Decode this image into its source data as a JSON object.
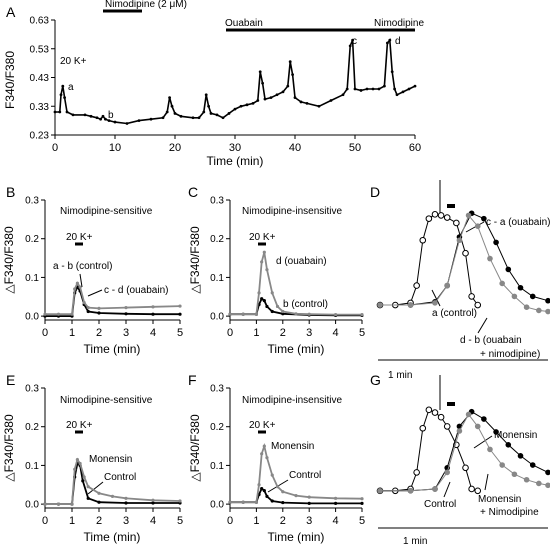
{
  "panels": {
    "A": {
      "letter": "A",
      "ylabel": "F340/F380",
      "xlabel": "Time (min)",
      "yticks": [
        "0.63",
        "0.53",
        "0.43",
        "0.33",
        "0.23"
      ],
      "xticks": [
        "0",
        "10",
        "20",
        "30",
        "40",
        "50",
        "60"
      ],
      "bars": [
        {
          "label": "Nimodipine (2 μM)",
          "from": 8,
          "to": 14.5
        },
        {
          "label": "Ouabain",
          "from": 28.5,
          "to": 60
        },
        {
          "label": "Nimodipine",
          "from": 53.5,
          "to": 60
        }
      ],
      "k_label": "20 K+",
      "point_labels": [
        "a",
        "b",
        "c",
        "d"
      ]
    },
    "B": {
      "letter": "B",
      "title": "Nimodipine-sensitive",
      "ylabel": "△F340/F380",
      "xlabel": "Time (min)",
      "yticks": [
        "0.3",
        "0.2",
        "0.1",
        "0.0"
      ],
      "xticks": [
        "0",
        "1",
        "2",
        "3",
        "4",
        "5"
      ],
      "k_label": "20 K+",
      "annotations": [
        "a - b (control)",
        "c - d (ouabain)"
      ]
    },
    "C": {
      "letter": "C",
      "title": "Nimodipine-insensitive",
      "ylabel": "△F340/F380",
      "xlabel": "Time (min)",
      "yticks": [
        "0.3",
        "0.2",
        "0.1",
        "0.0"
      ],
      "xticks": [
        "0",
        "1",
        "2",
        "3",
        "4",
        "5"
      ],
      "k_label": "20 K+",
      "annotations": [
        "d (ouabain)",
        "b (control)"
      ]
    },
    "D": {
      "letter": "D",
      "annotations": [
        "c - a (ouabain)",
        "a (control)",
        "d - b (ouabain",
        "+ nimodipine)"
      ],
      "scale_label": "1 min"
    },
    "E": {
      "letter": "E",
      "title": "Nimodipine-sensitive",
      "ylabel": "△F340/F380",
      "xlabel": "Time (min)",
      "yticks": [
        "0.3",
        "0.2",
        "0.1",
        "0.0"
      ],
      "xticks": [
        "0",
        "1",
        "2",
        "3",
        "4",
        "5"
      ],
      "k_label": "20 K+",
      "annotations": [
        "Monensin",
        "Control"
      ]
    },
    "F": {
      "letter": "F",
      "title": "Nimodipine-insensitive",
      "ylabel": "△F340/F380",
      "xlabel": "Time (min)",
      "yticks": [
        "0.3",
        "0.2",
        "0.1",
        "0.0"
      ],
      "xticks": [
        "0",
        "1",
        "2",
        "3",
        "4",
        "5"
      ],
      "k_label": "20 K+",
      "annotations": [
        "Monensin",
        "Control"
      ]
    },
    "G": {
      "letter": "G",
      "annotations": [
        "Monensin",
        "Control",
        "Monensin",
        "+ Nimodipine"
      ],
      "scale_label": "1 min"
    }
  },
  "chart_data": [
    {
      "panel": "A",
      "type": "line",
      "xlabel": "Time (min)",
      "ylabel": "F340/F380",
      "xlim": [
        0,
        60
      ],
      "ylim": [
        0.23,
        0.63
      ],
      "series": [
        {
          "color": "#000000",
          "x": [
            0,
            0.8,
            1,
            1.3,
            1.6,
            2,
            3,
            5,
            6,
            7,
            7.6,
            8,
            8.4,
            9,
            10,
            12,
            14,
            16,
            18,
            18.7,
            19.1,
            19.5,
            20,
            21,
            23,
            24,
            24.8,
            25.2,
            25.6,
            26,
            27,
            28,
            29,
            30,
            31,
            32,
            33,
            33.8,
            34.2,
            34.6,
            35,
            36,
            37,
            38,
            38.8,
            39.2,
            39.6,
            40,
            41,
            42,
            44,
            46,
            48,
            48.7,
            49.2,
            49.6,
            50,
            51,
            52,
            53,
            54,
            54.9,
            55.4,
            55.8,
            56.2,
            56.6,
            57,
            58,
            59,
            60
          ],
          "y": [
            0.31,
            0.31,
            0.37,
            0.4,
            0.36,
            0.31,
            0.3,
            0.3,
            0.295,
            0.29,
            0.285,
            0.295,
            0.285,
            0.28,
            0.275,
            0.27,
            0.28,
            0.285,
            0.29,
            0.31,
            0.36,
            0.33,
            0.305,
            0.295,
            0.29,
            0.29,
            0.31,
            0.37,
            0.33,
            0.305,
            0.3,
            0.29,
            0.305,
            0.32,
            0.33,
            0.335,
            0.34,
            0.35,
            0.45,
            0.41,
            0.355,
            0.36,
            0.37,
            0.38,
            0.4,
            0.485,
            0.44,
            0.36,
            0.345,
            0.34,
            0.33,
            0.35,
            0.37,
            0.39,
            0.54,
            0.56,
            0.39,
            0.385,
            0.39,
            0.39,
            0.39,
            0.4,
            0.55,
            0.56,
            0.45,
            0.39,
            0.37,
            0.38,
            0.39,
            0.4
          ]
        }
      ]
    },
    {
      "panel": "B",
      "type": "line",
      "xlabel": "Time (min)",
      "ylabel": "△F340/F380",
      "xlim": [
        0,
        5
      ],
      "ylim": [
        -0.01,
        0.3
      ],
      "series": [
        {
          "color": "#000000",
          "x": [
            0,
            0.5,
            1,
            1.1,
            1.2,
            1.3,
            1.45,
            1.6,
            2,
            3,
            4,
            5
          ],
          "y": [
            0.0,
            0.0,
            0.0,
            0.06,
            0.075,
            0.065,
            0.03,
            0.012,
            0.008,
            0.006,
            0.005,
            0.005
          ]
        },
        {
          "color": "#888888",
          "x": [
            0,
            0.5,
            1,
            1.1,
            1.2,
            1.3,
            1.45,
            1.6,
            2,
            3,
            4,
            5
          ],
          "y": [
            0.005,
            0.005,
            0.005,
            0.07,
            0.085,
            0.075,
            0.035,
            0.022,
            0.02,
            0.022,
            0.024,
            0.026
          ]
        }
      ]
    },
    {
      "panel": "C",
      "type": "line",
      "xlabel": "Time (min)",
      "ylabel": "△F340/F380",
      "xlim": [
        0,
        5
      ],
      "ylim": [
        -0.01,
        0.3
      ],
      "series": [
        {
          "color": "#000000",
          "x": [
            0,
            0.5,
            1,
            1.1,
            1.2,
            1.3,
            1.4,
            1.6,
            2,
            3,
            4,
            5
          ],
          "y": [
            0.005,
            0.005,
            0.005,
            0.03,
            0.045,
            0.04,
            0.025,
            0.012,
            0.006,
            0.003,
            0.002,
            0.002
          ]
        },
        {
          "color": "#888888",
          "x": [
            0,
            0.5,
            1,
            1.1,
            1.2,
            1.3,
            1.4,
            1.6,
            1.8,
            2,
            2.5,
            3,
            4,
            5
          ],
          "y": [
            0.005,
            0.005,
            0.005,
            0.06,
            0.14,
            0.165,
            0.12,
            0.06,
            0.025,
            0.012,
            0.006,
            0.005,
            0.004,
            0.004
          ]
        }
      ]
    },
    {
      "panel": "E",
      "type": "line",
      "xlabel": "Time (min)",
      "ylabel": "△F340/F380",
      "xlim": [
        0,
        5
      ],
      "ylim": [
        -0.01,
        0.3
      ],
      "series": [
        {
          "color": "#000000",
          "x": [
            0,
            0.5,
            1,
            1.1,
            1.2,
            1.3,
            1.4,
            1.6,
            2,
            3,
            4,
            5
          ],
          "y": [
            0.0,
            0.0,
            0.0,
            0.07,
            0.105,
            0.1,
            0.06,
            0.015,
            0.005,
            0.003,
            0.003,
            0.003
          ]
        },
        {
          "color": "#888888",
          "x": [
            0,
            0.5,
            1,
            1.1,
            1.2,
            1.3,
            1.45,
            1.6,
            2,
            2.5,
            3,
            4,
            5
          ],
          "y": [
            0.0,
            0.0,
            0.0,
            0.09,
            0.115,
            0.105,
            0.07,
            0.045,
            0.028,
            0.02,
            0.015,
            0.01,
            0.008
          ]
        }
      ]
    },
    {
      "panel": "F",
      "type": "line",
      "xlabel": "Time (min)",
      "ylabel": "△F340/F380",
      "xlim": [
        0,
        5
      ],
      "ylim": [
        -0.01,
        0.3
      ],
      "series": [
        {
          "color": "#000000",
          "x": [
            0,
            0.5,
            1,
            1.1,
            1.2,
            1.3,
            1.4,
            1.6,
            2,
            3,
            4,
            5
          ],
          "y": [
            0.005,
            0.005,
            0.005,
            0.025,
            0.04,
            0.035,
            0.02,
            0.008,
            0.004,
            0.002,
            0.002,
            0.002
          ]
        },
        {
          "color": "#888888",
          "x": [
            0,
            0.5,
            1,
            1.1,
            1.2,
            1.3,
            1.4,
            1.6,
            1.8,
            2,
            2.5,
            3,
            4,
            5
          ],
          "y": [
            0.005,
            0.005,
            0.005,
            0.05,
            0.13,
            0.15,
            0.12,
            0.075,
            0.045,
            0.032,
            0.022,
            0.018,
            0.015,
            0.014
          ]
        }
      ]
    },
    {
      "panel": "D",
      "type": "scatter",
      "xlim": [
        0,
        5.5
      ],
      "ylim": [
        0,
        1
      ],
      "series": [
        {
          "marker": "open",
          "color": "#000000",
          "x": [
            0,
            0.5,
            1.0,
            1.2,
            1.4,
            1.6,
            1.8,
            2.0,
            2.2,
            2.5,
            2.8,
            3.0,
            3.2
          ],
          "y": [
            0.12,
            0.12,
            0.14,
            0.3,
            0.72,
            0.92,
            0.96,
            0.95,
            0.93,
            0.88,
            0.6,
            0.2,
            0.12
          ]
        },
        {
          "marker": "filled",
          "color": "#000000",
          "x": [
            0,
            1.0,
            1.8,
            2.2,
            2.6,
            3.0,
            3.4,
            3.8,
            4.2,
            4.6,
            5.0,
            5.5
          ],
          "y": [
            0.12,
            0.12,
            0.15,
            0.3,
            0.75,
            0.97,
            0.92,
            0.7,
            0.45,
            0.28,
            0.2,
            0.16
          ]
        },
        {
          "marker": "filled",
          "color": "#888888",
          "x": [
            0,
            1.0,
            1.8,
            2.2,
            2.6,
            2.9,
            3.2,
            3.6,
            4.0,
            4.4,
            4.8,
            5.2,
            5.5
          ],
          "y": [
            0.12,
            0.12,
            0.14,
            0.3,
            0.72,
            0.95,
            0.85,
            0.55,
            0.32,
            0.2,
            0.1,
            0.07,
            0.06
          ]
        }
      ]
    },
    {
      "panel": "G",
      "type": "scatter",
      "xlim": [
        0,
        5.5
      ],
      "ylim": [
        0,
        1
      ],
      "series": [
        {
          "marker": "open",
          "color": "#000000",
          "x": [
            0,
            0.5,
            1.0,
            1.2,
            1.4,
            1.6,
            1.8,
            2.0,
            2.2,
            2.5,
            2.8,
            3.0,
            3.2
          ],
          "y": [
            0.1,
            0.1,
            0.12,
            0.3,
            0.78,
            0.98,
            0.95,
            0.9,
            0.8,
            0.6,
            0.35,
            0.12,
            0.1
          ]
        },
        {
          "marker": "filled",
          "color": "#000000",
          "x": [
            0,
            1.0,
            1.8,
            2.2,
            2.6,
            3.0,
            3.4,
            3.8,
            4.2,
            4.6,
            5.0,
            5.5
          ],
          "y": [
            0.1,
            0.1,
            0.12,
            0.35,
            0.8,
            0.96,
            0.88,
            0.74,
            0.6,
            0.48,
            0.38,
            0.3
          ]
        },
        {
          "marker": "filled",
          "color": "#888888",
          "x": [
            0,
            1.0,
            1.8,
            2.2,
            2.6,
            2.9,
            3.2,
            3.6,
            4.0,
            4.4,
            4.8,
            5.2,
            5.5
          ],
          "y": [
            0.1,
            0.1,
            0.12,
            0.3,
            0.75,
            0.93,
            0.8,
            0.55,
            0.38,
            0.28,
            0.22,
            0.18,
            0.16
          ]
        }
      ]
    }
  ]
}
